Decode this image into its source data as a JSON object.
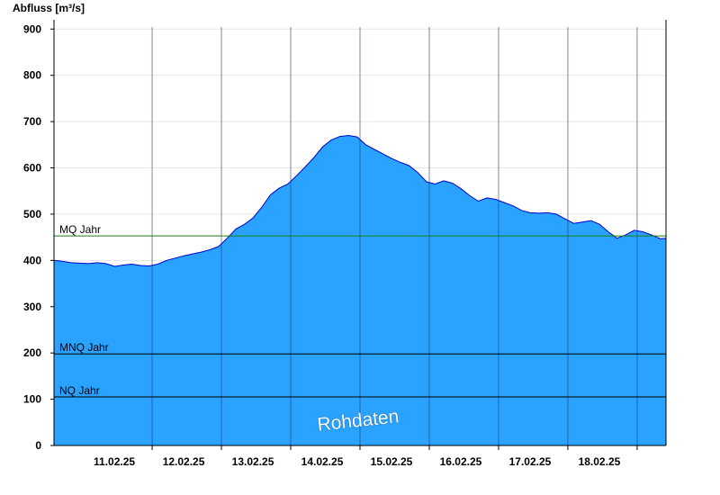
{
  "chart_data": {
    "type": "area",
    "ylabel": "Abfluss [m³/s]",
    "ylim": [
      0,
      920
    ],
    "yticks": [
      0,
      100,
      200,
      300,
      400,
      500,
      600,
      700,
      800,
      900
    ],
    "xlim": [
      "10.02.25 14:00",
      "18.02.25 22:00"
    ],
    "xticks": [
      "11.02.25",
      "12.02.25",
      "13.02.25",
      "14.02.25",
      "15.02.25",
      "16.02.25",
      "17.02.25",
      "18.02.25"
    ],
    "grid": true,
    "series": [
      {
        "fill_color": "#29a3ff",
        "line_color": "#0000cc",
        "x_hours": [
          0,
          3,
          6,
          9,
          12,
          15,
          18,
          21,
          24,
          27,
          30,
          33,
          36,
          39,
          42,
          45,
          48,
          51,
          54,
          57,
          60,
          63,
          66,
          69,
          72,
          75,
          78,
          81,
          84,
          87,
          90,
          93,
          96,
          99,
          102,
          105,
          108,
          111,
          114,
          117,
          120,
          123,
          126,
          129,
          132,
          135,
          138,
          141,
          144,
          147,
          150,
          153,
          156,
          159,
          162,
          165,
          168,
          171,
          174,
          177,
          180,
          183,
          186,
          189,
          192,
          195,
          198,
          201,
          204,
          207,
          210,
          212
        ],
        "values": [
          400,
          398,
          395,
          394,
          393,
          395,
          393,
          387,
          390,
          392,
          389,
          388,
          392,
          400,
          405,
          410,
          414,
          418,
          423,
          430,
          448,
          468,
          478,
          492,
          515,
          542,
          556,
          565,
          583,
          602,
          622,
          645,
          660,
          668,
          670,
          667,
          650,
          640,
          630,
          620,
          612,
          605,
          590,
          570,
          565,
          572,
          567,
          555,
          540,
          528,
          535,
          532,
          525,
          518,
          508,
          503,
          502,
          503,
          500,
          490,
          480,
          483,
          486,
          478,
          462,
          448,
          455,
          465,
          462,
          455,
          447,
          448
        ]
      }
    ],
    "reference_lines": [
      {
        "label": "MQ Jahr",
        "value": 453,
        "color": "#1a7f1a"
      },
      {
        "label": "MNQ Jahr",
        "value": 198,
        "color": "#000000"
      },
      {
        "label": "NQ Jahr",
        "value": 105,
        "color": "#000000"
      }
    ],
    "watermark": "Rohdaten"
  }
}
